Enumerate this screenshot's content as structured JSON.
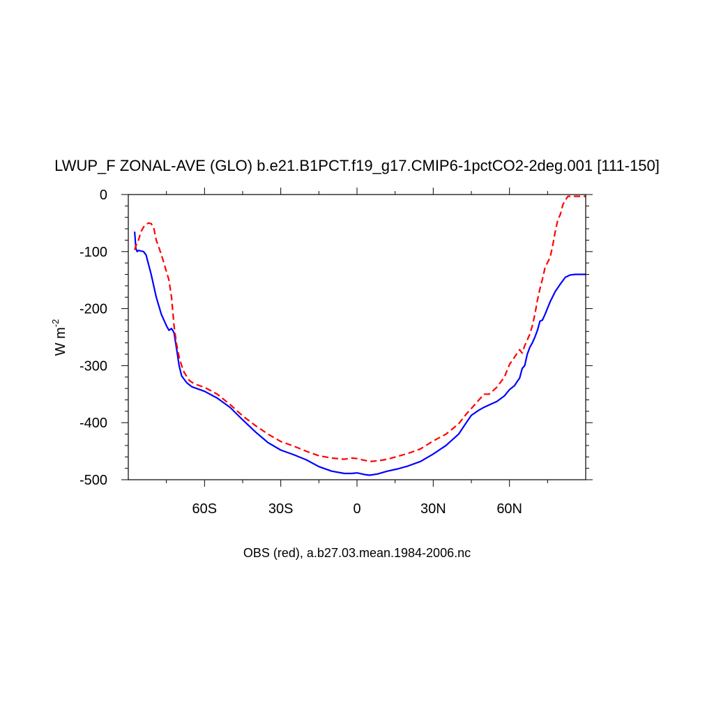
{
  "chart_data": {
    "type": "line",
    "title": "LWUP_F ZONAL-AVE (GLO) b.e21.B1PCT.f19_g17.CMIP6-1pctCO2-2deg.001 [111-150]",
    "ylabel": "W m",
    "ylabel_sup": "-2",
    "footer": "OBS (red), a.b27.03.mean.1984-2006.nc",
    "xlim": [
      -90,
      90
    ],
    "ylim": [
      -500,
      0
    ],
    "x_ticks": [
      {
        "value": -60,
        "label": "60S"
      },
      {
        "value": -30,
        "label": "30S"
      },
      {
        "value": 0,
        "label": "0"
      },
      {
        "value": 30,
        "label": "30N"
      },
      {
        "value": 60,
        "label": "60N"
      }
    ],
    "y_ticks": [
      {
        "value": 0,
        "label": "0"
      },
      {
        "value": -100,
        "label": "-100"
      },
      {
        "value": -200,
        "label": "-200"
      },
      {
        "value": -300,
        "label": "-300"
      },
      {
        "value": -400,
        "label": "-400"
      },
      {
        "value": -500,
        "label": "-500"
      }
    ],
    "grid": false,
    "series": [
      {
        "color": "#0000ff",
        "dash": "solid",
        "points": [
          [
            -87.5,
            -65
          ],
          [
            -87,
            -95
          ],
          [
            -86.5,
            -100
          ],
          [
            -86,
            -98
          ],
          [
            -84,
            -100
          ],
          [
            -83,
            -106
          ],
          [
            -81,
            -140
          ],
          [
            -79,
            -180
          ],
          [
            -77,
            -210
          ],
          [
            -75,
            -230
          ],
          [
            -74,
            -238
          ],
          [
            -73,
            -235
          ],
          [
            -72,
            -242
          ],
          [
            -71,
            -270
          ],
          [
            -70,
            -300
          ],
          [
            -69,
            -318
          ],
          [
            -67,
            -330
          ],
          [
            -65,
            -337
          ],
          [
            -60,
            -345
          ],
          [
            -55,
            -357
          ],
          [
            -50,
            -373
          ],
          [
            -45,
            -395
          ],
          [
            -40,
            -416
          ],
          [
            -35,
            -435
          ],
          [
            -30,
            -448
          ],
          [
            -25,
            -456
          ],
          [
            -20,
            -465
          ],
          [
            -15,
            -477
          ],
          [
            -10,
            -485
          ],
          [
            -5,
            -489
          ],
          [
            -2,
            -489
          ],
          [
            0,
            -488
          ],
          [
            3,
            -491
          ],
          [
            5,
            -492
          ],
          [
            8,
            -490
          ],
          [
            12,
            -485
          ],
          [
            16,
            -481
          ],
          [
            20,
            -476
          ],
          [
            25,
            -468
          ],
          [
            30,
            -455
          ],
          [
            35,
            -440
          ],
          [
            40,
            -420
          ],
          [
            43,
            -400
          ],
          [
            45,
            -387
          ],
          [
            48,
            -378
          ],
          [
            50,
            -373
          ],
          [
            52,
            -369
          ],
          [
            55,
            -363
          ],
          [
            58,
            -353
          ],
          [
            60,
            -342
          ],
          [
            62,
            -335
          ],
          [
            63,
            -328
          ],
          [
            64,
            -322
          ],
          [
            65,
            -305
          ],
          [
            66,
            -300
          ],
          [
            67,
            -280
          ],
          [
            68,
            -268
          ],
          [
            69,
            -260
          ],
          [
            70,
            -250
          ],
          [
            71,
            -238
          ],
          [
            72,
            -222
          ],
          [
            73,
            -220
          ],
          [
            74,
            -210
          ],
          [
            76,
            -188
          ],
          [
            78,
            -170
          ],
          [
            80,
            -157
          ],
          [
            82,
            -145
          ],
          [
            84,
            -141
          ],
          [
            86,
            -140
          ],
          [
            88,
            -140
          ],
          [
            90,
            -140
          ]
        ]
      },
      {
        "color": "#ff0000",
        "dash": "dashed",
        "points": [
          [
            -87.5,
            -97
          ],
          [
            -87,
            -90
          ],
          [
            -86,
            -80
          ],
          [
            -85,
            -65
          ],
          [
            -84,
            -57
          ],
          [
            -83,
            -52
          ],
          [
            -82,
            -50
          ],
          [
            -81,
            -51
          ],
          [
            -80,
            -58
          ],
          [
            -79,
            -80
          ],
          [
            -77,
            -105
          ],
          [
            -75,
            -135
          ],
          [
            -74,
            -150
          ],
          [
            -73,
            -180
          ],
          [
            -72,
            -230
          ],
          [
            -71,
            -262
          ],
          [
            -70,
            -285
          ],
          [
            -69,
            -300
          ],
          [
            -68,
            -312
          ],
          [
            -66,
            -326
          ],
          [
            -64,
            -332
          ],
          [
            -60,
            -338
          ],
          [
            -55,
            -350
          ],
          [
            -50,
            -368
          ],
          [
            -45,
            -388
          ],
          [
            -40,
            -405
          ],
          [
            -35,
            -420
          ],
          [
            -30,
            -433
          ],
          [
            -25,
            -441
          ],
          [
            -20,
            -450
          ],
          [
            -15,
            -458
          ],
          [
            -10,
            -462
          ],
          [
            -5,
            -464
          ],
          [
            -2,
            -462
          ],
          [
            0,
            -463
          ],
          [
            3,
            -466
          ],
          [
            5,
            -468
          ],
          [
            8,
            -467
          ],
          [
            12,
            -464
          ],
          [
            16,
            -459
          ],
          [
            20,
            -454
          ],
          [
            25,
            -446
          ],
          [
            30,
            -432
          ],
          [
            35,
            -420
          ],
          [
            40,
            -402
          ],
          [
            43,
            -385
          ],
          [
            45,
            -375
          ],
          [
            48,
            -360
          ],
          [
            50,
            -350
          ],
          [
            52,
            -350
          ],
          [
            55,
            -338
          ],
          [
            58,
            -320
          ],
          [
            60,
            -298
          ],
          [
            62,
            -285
          ],
          [
            64,
            -272
          ],
          [
            65,
            -278
          ],
          [
            66,
            -265
          ],
          [
            68,
            -245
          ],
          [
            69,
            -230
          ],
          [
            70,
            -210
          ],
          [
            71,
            -185
          ],
          [
            72,
            -165
          ],
          [
            73,
            -148
          ],
          [
            74,
            -128
          ],
          [
            76,
            -110
          ],
          [
            77,
            -90
          ],
          [
            78,
            -65
          ],
          [
            79,
            -45
          ],
          [
            80,
            -35
          ],
          [
            81,
            -18
          ],
          [
            82,
            -10
          ],
          [
            83,
            -3
          ],
          [
            85,
            -3
          ],
          [
            90,
            -3
          ]
        ]
      }
    ]
  }
}
